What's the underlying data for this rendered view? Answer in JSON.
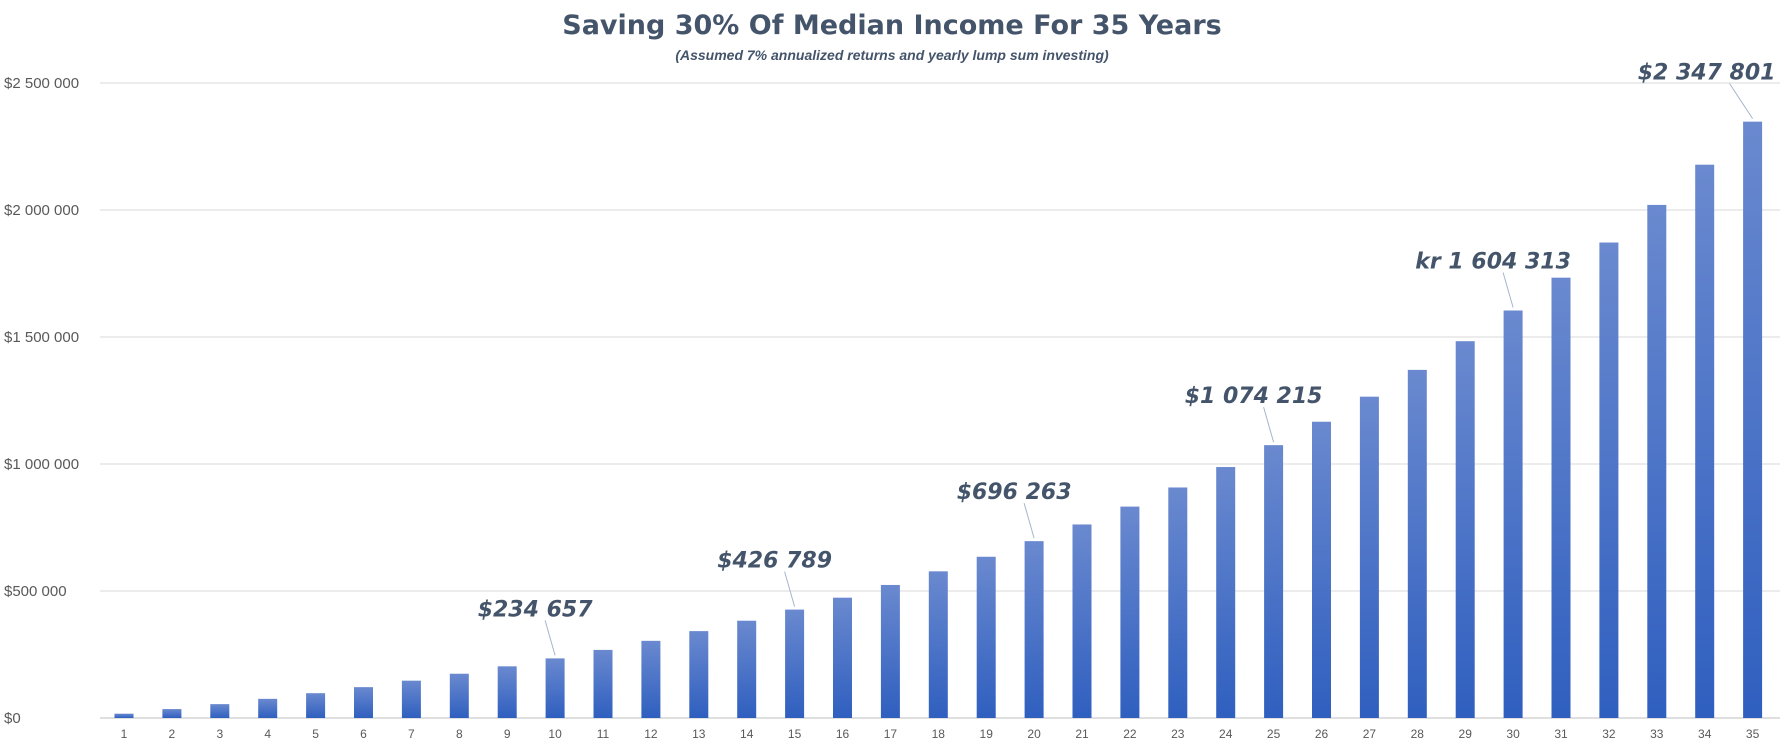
{
  "chart_data": {
    "type": "bar",
    "title": "Saving 30% Of Median Income For 35 Years",
    "subtitle": "(Assumed 7% annualized returns and yearly lump sum investing)",
    "xlabel": "",
    "ylabel": "",
    "ylim": [
      0,
      2500000
    ],
    "yticks": [
      0,
      500000,
      1000000,
      1500000,
      2000000,
      2500000
    ],
    "ytick_labels": [
      "$0",
      "$500 000",
      "$1 000 000",
      "$1 500 000",
      "$2 000 000",
      "$2 500 000"
    ],
    "grid": true,
    "legend": "none",
    "categories": [
      "1",
      "2",
      "3",
      "4",
      "5",
      "6",
      "7",
      "8",
      "9",
      "10",
      "11",
      "12",
      "13",
      "14",
      "15",
      "16",
      "17",
      "18",
      "19",
      "20",
      "21",
      "22",
      "23",
      "24",
      "25",
      "26",
      "27",
      "28",
      "29",
      "30",
      "31",
      "32",
      "33",
      "34",
      "35"
    ],
    "values": [
      16984,
      35157,
      54602,
      75408,
      97670,
      121491,
      146979,
      174251,
      203433,
      234657,
      268068,
      303816,
      342068,
      382997,
      426789,
      473648,
      523787,
      577437,
      634841,
      696263,
      761986,
      832310,
      907557,
      988070,
      1074215,
      1166397,
      1265029,
      1370563,
      1483487,
      1604313,
      1733599,
      1871938,
      2019958,
      2178337,
      2347801
    ],
    "annotations": [
      {
        "category": "10",
        "text": "$234 657"
      },
      {
        "category": "15",
        "text": "$426 789"
      },
      {
        "category": "20",
        "text": "$696 263"
      },
      {
        "category": "25",
        "text": "$1 074 215"
      },
      {
        "category": "30",
        "text": "kr 1 604 313"
      },
      {
        "category": "35",
        "text": "$2 347 801"
      }
    ],
    "colors": {
      "bar_top": "#6a89cf",
      "bar_bottom": "#2f5fbf",
      "text": "#44546a",
      "grid": "#d9d9d9"
    }
  }
}
